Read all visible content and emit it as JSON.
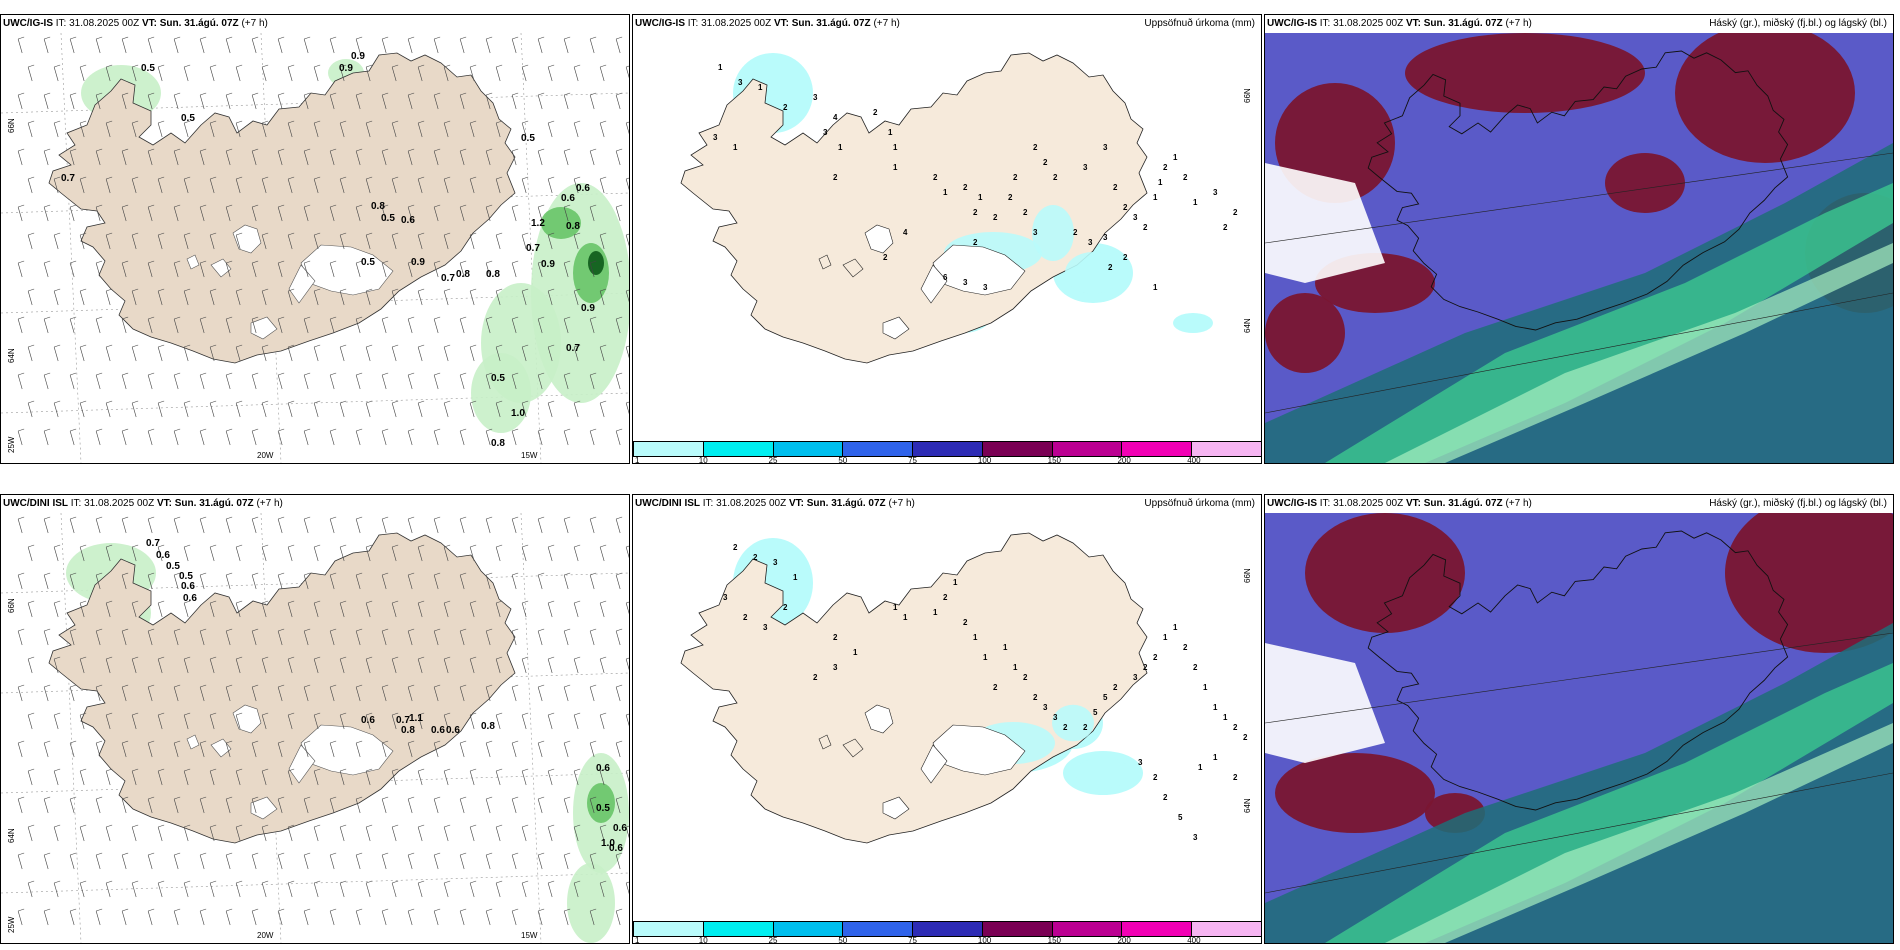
{
  "rows": [
    {
      "model": "UWC/IG-IS",
      "it_label": "IT:",
      "it_value": "31.08.2025 00Z",
      "vt_label": "VT:",
      "vt_value": "Sun. 31.ágú. 07Z",
      "lead": "(+7 h)",
      "cloud_model": "UWC/IG-IS",
      "wind_values": [
        "0.5",
        "0.5",
        "0.9",
        "0.9",
        "0.7",
        "0.5",
        "0.8",
        "0.5",
        "0.6",
        "0.5",
        "0.9",
        "0.8",
        "0.7",
        "0.8",
        "0.6",
        "0.8",
        "0.7",
        "0.9",
        "0.9",
        "0.7",
        "0.5",
        "1.0",
        "0.8",
        "0.6",
        "1.2"
      ],
      "precip_numbers": [
        "1",
        "3",
        "1",
        "3",
        "1",
        "2",
        "3",
        "4",
        "3",
        "1",
        "2",
        "1",
        "1",
        "2",
        "1",
        "1",
        "2",
        "2",
        "1",
        "2",
        "2",
        "2",
        "2",
        "2",
        "3",
        "2",
        "3",
        "3",
        "2",
        "4",
        "2",
        "6",
        "3",
        "3",
        "2",
        "2",
        "2",
        "3",
        "3",
        "2",
        "2",
        "3",
        "2",
        "1",
        "1",
        "2",
        "1",
        "2",
        "1",
        "3",
        "2",
        "2",
        "1",
        "2",
        "2"
      ]
    },
    {
      "model": "UWC/DINI ISL",
      "it_label": "IT:",
      "it_value": "31.08.2025 00Z",
      "vt_label": "VT:",
      "vt_value": "Sun. 31.ágú. 07Z",
      "lead": "(+7 h)",
      "cloud_model": "UWC/IG-IS",
      "wind_values": [
        "0.7",
        "0.6",
        "0.5",
        "0.5",
        "0.6",
        "0.6",
        "0.7",
        "1.1",
        "0.6",
        "0.8",
        "0.6",
        "0.6",
        "0.8",
        "0.6",
        "1.0",
        "0.6",
        "0.6",
        "0.5"
      ],
      "precip_numbers": [
        "2",
        "2",
        "3",
        "1",
        "3",
        "2",
        "3",
        "2",
        "2",
        "1",
        "3",
        "2",
        "1",
        "1",
        "1",
        "2",
        "1",
        "2",
        "1",
        "1",
        "1",
        "1",
        "2",
        "2",
        "2",
        "3",
        "3",
        "2",
        "2",
        "5",
        "5",
        "2",
        "3",
        "2",
        "2",
        "1",
        "1",
        "2",
        "2",
        "1",
        "1",
        "1",
        "2",
        "2",
        "3",
        "2",
        "2",
        "5",
        "3",
        "1",
        "1",
        "2"
      ]
    }
  ],
  "precip_title": "Uppsöfnuð úrkoma (mm)",
  "cloud_title": "Háský (gr.), miðský (fj.bl.) og lágský (bl.)",
  "axis_labels": {
    "lat_66": "66N",
    "lat_64": "64N",
    "lon_20": "20W",
    "lon_15": "15W",
    "lon_25": "25W"
  },
  "colorbar": {
    "ticks": [
      "1",
      "10",
      "25",
      "50",
      "75",
      "100",
      "150",
      "200",
      "400"
    ],
    "colors": [
      "#b9fbfb",
      "#00eef0",
      "#00bfee",
      "#2f63ea",
      "#2d2bb5",
      "#7a0054",
      "#bb0092",
      "#f100b4",
      "#f6b5f2"
    ]
  },
  "colors": {
    "land": "#f6eadb",
    "land_wind": "#e8d9c8",
    "wind_light": "#c8f0c8",
    "wind_mid": "#68c468",
    "wind_dark": "#0d5a1a",
    "cloud_high": "#7a1632",
    "cloud_mid": "#5a5ac8",
    "cloud_low": "#1e6e78"
  }
}
